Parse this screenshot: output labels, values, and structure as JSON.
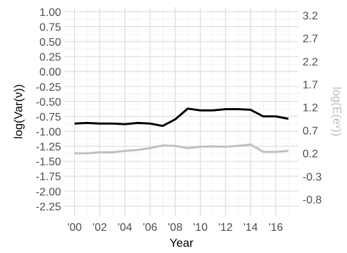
{
  "chart_data": {
    "type": "line",
    "title": "",
    "xlabel": "Year",
    "ylabel": "log(Var(ν))",
    "y2label": "log(E(eᵛ))",
    "x": [
      2000,
      2001,
      2002,
      2003,
      2004,
      2005,
      2006,
      2007,
      2008,
      2009,
      2010,
      2011,
      2012,
      2013,
      2014,
      2015,
      2016,
      2017
    ],
    "xticks": [
      2000,
      2002,
      2004,
      2006,
      2008,
      2010,
      2012,
      2014,
      2016
    ],
    "xtick_labels": [
      "'00",
      "'02",
      "'04",
      "'06",
      "'08",
      "'10",
      "'12",
      "'14",
      "'16"
    ],
    "xlim": [
      1999.2,
      2017.8
    ],
    "ylim": [
      -2.42,
      1.08
    ],
    "yticks": [
      1.0,
      0.75,
      0.5,
      0.25,
      0.0,
      -0.25,
      -0.5,
      -0.75,
      -1.0,
      -1.25,
      -1.5,
      -1.75,
      -2.0,
      -2.25
    ],
    "ytick_labels": [
      "1.00",
      "0.75",
      "0.50",
      "0.25",
      "0.00",
      "-0.25",
      "-0.50",
      "-0.75",
      "-1.00",
      "-1.25",
      "-1.50",
      "-1.75",
      "-2.00",
      "-2.25"
    ],
    "y2ticks": [
      3.2,
      2.7,
      2.2,
      1.7,
      1.2,
      0.7,
      0.2,
      -0.3,
      -0.8
    ],
    "y2tick_labels": [
      "3.2",
      "2.7",
      "2.2",
      "1.7",
      "1.2",
      "0.7",
      "0.2",
      "-0.3",
      "-0.8"
    ],
    "y2lim": [
      -1.17,
      3.38
    ],
    "grid": true,
    "series": [
      {
        "axis": "left",
        "color": "#000000",
        "values": [
          -0.87,
          -0.86,
          -0.87,
          -0.87,
          -0.88,
          -0.86,
          -0.87,
          -0.91,
          -0.8,
          -0.62,
          -0.65,
          -0.65,
          -0.63,
          -0.63,
          -0.64,
          -0.75,
          -0.75,
          -0.79
        ]
      },
      {
        "axis": "right",
        "color": "#c0c0c0",
        "values": [
          0.2,
          0.2,
          0.22,
          0.22,
          0.25,
          0.27,
          0.31,
          0.37,
          0.36,
          0.31,
          0.34,
          0.35,
          0.34,
          0.36,
          0.39,
          0.23,
          0.23,
          0.25
        ]
      }
    ]
  }
}
